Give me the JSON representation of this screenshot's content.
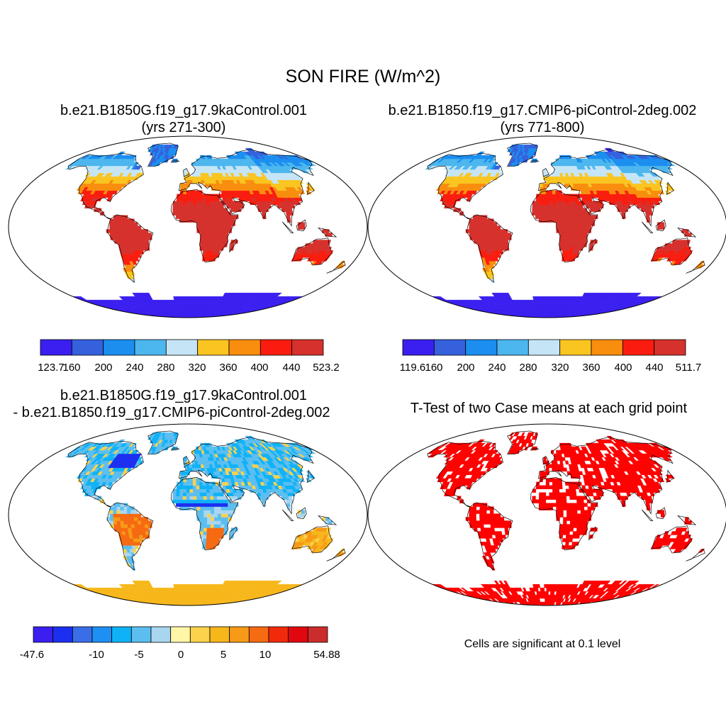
{
  "title": "SON FIRE (W/m^2)",
  "panels": [
    {
      "title_line1": "b.e21.B1850G.f19_g17.9kaControl.001",
      "title_line2": "(yrs 271-300)",
      "colorbar": {
        "labels": [
          "123.7",
          "160",
          "200",
          "240",
          "280",
          "320",
          "360",
          "400",
          "440",
          "523.2"
        ],
        "colors": [
          "#3a1ff0",
          "#3561dd",
          "#1b8ef0",
          "#4cb6ee",
          "#c5e5f7",
          "#fac520",
          "#f98d0e",
          "#fa1d0f",
          "#d6312c"
        ]
      }
    },
    {
      "title_line1": "b.e21.B1850.f19_g17.CMIP6-piControl-2deg.002",
      "title_line2": "(yrs 771-800)",
      "colorbar": {
        "labels": [
          "119.6",
          "160",
          "200",
          "240",
          "280",
          "320",
          "360",
          "400",
          "440",
          "511.7"
        ],
        "colors": [
          "#3a1ff0",
          "#3561dd",
          "#1b8ef0",
          "#4cb6ee",
          "#c5e5f7",
          "#fac520",
          "#f98d0e",
          "#fa1d0f",
          "#d6312c"
        ]
      }
    },
    {
      "title_line1": "b.e21.B1850G.f19_g17.9kaControl.001",
      "title_line2": "- b.e21.B1850.f19_g17.CMIP6-piControl-2deg.002",
      "colorbar": {
        "labels": [
          "-47.6",
          "",
          "-10",
          "",
          "-5",
          "",
          "0",
          "",
          "5",
          "",
          "10",
          "",
          "",
          "54.88"
        ],
        "colors": [
          "#3a1ff0",
          "#1c2ff0",
          "#3a6ee6",
          "#1e8ff3",
          "#0fb2f7",
          "#5cbef0",
          "#a9d6ef",
          "#fff6a8",
          "#fbd24b",
          "#f7b71b",
          "#f79a17",
          "#f66a12",
          "#f22a0c",
          "#e0080e",
          "#cb2c2c"
        ]
      }
    },
    {
      "title_line1": "T-Test of two Case means at each grid point",
      "note": "Cells are significant at 0.1 level"
    }
  ]
}
